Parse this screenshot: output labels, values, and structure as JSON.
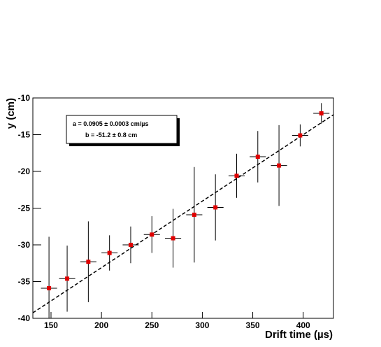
{
  "chart_data": {
    "type": "scatter",
    "x_label": "Drift time (µs)",
    "y_label": "y (cm)",
    "xlim": [
      132,
      430
    ],
    "ylim": [
      -40,
      -10
    ],
    "xticks": [
      150,
      200,
      250,
      300,
      350,
      400
    ],
    "yticks": [
      -40,
      -35,
      -30,
      -25,
      -20,
      -15,
      -10
    ],
    "series": [
      {
        "color": "#e00000",
        "x": [
          148,
          166,
          187,
          208,
          229,
          250,
          271,
          292,
          313,
          334,
          355,
          376,
          397,
          418
        ],
        "x_errors": [
          8,
          8,
          8,
          8,
          8,
          8,
          8,
          8,
          8,
          8,
          8,
          8,
          8,
          8
        ],
        "values": [
          -35.9,
          -34.6,
          -32.3,
          -31.1,
          -30,
          -28.6,
          -29.1,
          -25.9,
          -24.9,
          -20.6,
          -18,
          -19.2,
          -15.1,
          -12.1
        ],
        "errors": [
          7,
          4.5,
          5.5,
          2.4,
          2.5,
          2.5,
          4,
          6.5,
          4.5,
          3,
          3.5,
          5.5,
          1.5,
          1.4
        ]
      }
    ],
    "fit": {
      "slope": 0.0905,
      "intercept": -51.2
    },
    "annotations": [
      "a =  0.0905 ±  0.0003 cm/µs",
      "b = -51.2 ±   0.8 cm"
    ]
  }
}
